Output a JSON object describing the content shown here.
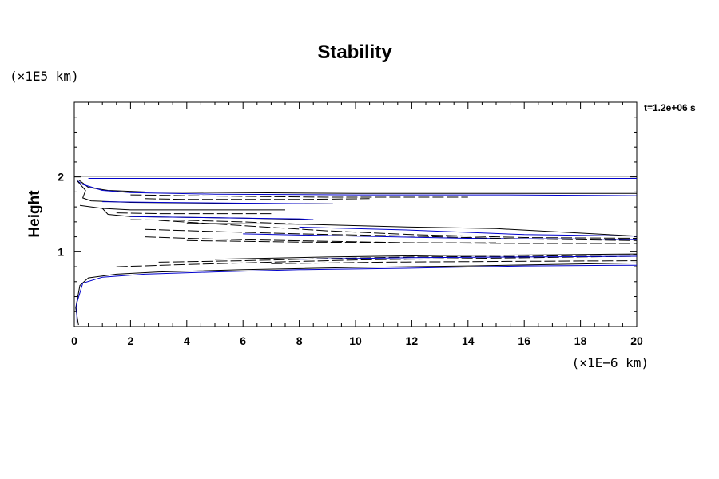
{
  "chart_data": {
    "type": "line",
    "title": "Stability",
    "ylabel": "Height",
    "y_scale_note": "(×1E5 km)",
    "x_scale_note": "(×1E−6 km)",
    "time_label": "t=1.2e+06 s",
    "xlim": [
      0,
      20
    ],
    "ylim": [
      0,
      3
    ],
    "x_ticks": [
      0,
      2,
      4,
      6,
      8,
      10,
      12,
      14,
      16,
      18,
      20
    ],
    "y_ticks": [
      1,
      2
    ],
    "grid": false,
    "legend": "none",
    "colors": {
      "black": "#000000",
      "blue": "#0000cc"
    },
    "series": [
      {
        "color": "#000000",
        "dash": "solid",
        "points": [
          [
            0,
            2.01
          ],
          [
            3,
            2.01
          ],
          [
            9,
            2.01
          ],
          [
            15,
            2.01
          ],
          [
            20,
            2.01
          ]
        ]
      },
      {
        "color": "#0000cc",
        "dash": "solid",
        "points": [
          [
            0.5,
            1.98
          ],
          [
            5,
            1.98
          ],
          [
            9.5,
            1.98
          ],
          [
            15.5,
            1.98
          ],
          [
            20,
            1.98
          ]
        ]
      },
      {
        "color": "#000000",
        "dash": "solid",
        "points": [
          [
            0.15,
            1.96
          ],
          [
            0.3,
            1.92
          ],
          [
            0.5,
            1.86
          ],
          [
            1.2,
            1.82
          ],
          [
            2.5,
            1.8
          ],
          [
            6,
            1.79
          ],
          [
            10,
            1.78
          ],
          [
            15,
            1.78
          ],
          [
            20,
            1.78
          ]
        ]
      },
      {
        "color": "#0000cc",
        "dash": "solid",
        "points": [
          [
            0.1,
            1.95
          ],
          [
            0.3,
            1.9
          ],
          [
            1,
            1.82
          ],
          [
            2,
            1.79
          ],
          [
            5,
            1.77
          ],
          [
            10,
            1.76
          ],
          [
            15,
            1.76
          ],
          [
            20,
            1.75
          ]
        ]
      },
      {
        "color": "#000000",
        "dash": "dashed",
        "points": [
          [
            2,
            1.76
          ],
          [
            4,
            1.75
          ],
          [
            6,
            1.74
          ],
          [
            9,
            1.73
          ],
          [
            12,
            1.73
          ],
          [
            14,
            1.73
          ]
        ]
      },
      {
        "color": "#000000",
        "dash": "dashed",
        "points": [
          [
            2.5,
            1.71
          ],
          [
            4,
            1.7
          ],
          [
            6,
            1.7
          ],
          [
            8,
            1.7
          ],
          [
            10.5,
            1.71
          ]
        ]
      },
      {
        "color": "#000000",
        "dash": "solid",
        "points": [
          [
            0.1,
            1.95
          ],
          [
            0.4,
            1.82
          ],
          [
            0.3,
            1.72
          ],
          [
            0.6,
            1.68
          ],
          [
            2,
            1.66
          ],
          [
            5,
            1.65
          ],
          [
            9.2,
            1.64
          ]
        ]
      },
      {
        "color": "#0000cc",
        "dash": "solid",
        "points": [
          [
            1,
            1.67
          ],
          [
            3,
            1.66
          ],
          [
            6,
            1.65
          ],
          [
            9.2,
            1.64
          ]
        ]
      },
      {
        "color": "#000000",
        "dash": "solid",
        "points": [
          [
            0.2,
            1.62
          ],
          [
            1,
            1.58
          ],
          [
            2,
            1.56
          ],
          [
            4,
            1.56
          ],
          [
            6,
            1.56
          ],
          [
            7.5,
            1.56
          ]
        ]
      },
      {
        "color": "#000000",
        "dash": "solid",
        "points": [
          [
            1,
            1.58
          ],
          [
            1.2,
            1.5
          ],
          [
            2,
            1.47
          ],
          [
            4,
            1.46
          ],
          [
            6,
            1.45
          ],
          [
            8.5,
            1.43
          ]
        ]
      },
      {
        "color": "#0000cc",
        "dash": "solid",
        "points": [
          [
            2,
            1.47
          ],
          [
            4,
            1.46
          ],
          [
            6,
            1.45
          ],
          [
            8,
            1.44
          ],
          [
            8.5,
            1.43
          ]
        ]
      },
      {
        "color": "#000000",
        "dash": "dashed",
        "points": [
          [
            1.5,
            1.52
          ],
          [
            3,
            1.51
          ],
          [
            5,
            1.51
          ],
          [
            7,
            1.51
          ]
        ]
      },
      {
        "color": "#000000",
        "dash": "dashed",
        "points": [
          [
            2,
            1.43
          ],
          [
            4,
            1.42
          ],
          [
            6,
            1.4
          ],
          [
            8,
            1.37
          ]
        ]
      },
      {
        "color": "#000000",
        "dash": "solid",
        "points": [
          [
            4,
            1.38
          ],
          [
            8,
            1.37
          ],
          [
            12,
            1.33
          ],
          [
            15,
            1.31
          ],
          [
            20,
            1.21
          ]
        ]
      },
      {
        "color": "#0000cc",
        "dash": "solid",
        "points": [
          [
            8,
            1.33
          ],
          [
            12,
            1.29
          ],
          [
            16,
            1.23
          ],
          [
            20,
            1.21
          ]
        ]
      },
      {
        "color": "#0000cc",
        "dash": "solid",
        "points": [
          [
            6,
            1.24
          ],
          [
            10,
            1.21
          ],
          [
            14,
            1.18
          ],
          [
            18,
            1.17
          ],
          [
            20,
            1.16
          ]
        ]
      },
      {
        "color": "#000000",
        "dash": "dashed",
        "points": [
          [
            3,
            1.42
          ],
          [
            6,
            1.35
          ],
          [
            9,
            1.28
          ],
          [
            12,
            1.23
          ],
          [
            16,
            1.19
          ],
          [
            20,
            1.18
          ]
        ]
      },
      {
        "color": "#000000",
        "dash": "dashed",
        "points": [
          [
            2.5,
            1.3
          ],
          [
            5,
            1.27
          ],
          [
            8,
            1.24
          ],
          [
            12,
            1.21
          ],
          [
            16,
            1.17
          ],
          [
            20,
            1.15
          ]
        ]
      },
      {
        "color": "#000000",
        "dash": "dashed",
        "points": [
          [
            2.5,
            1.2
          ],
          [
            4,
            1.18
          ],
          [
            6,
            1.16
          ],
          [
            9,
            1.14
          ],
          [
            12,
            1.12
          ],
          [
            16,
            1.11
          ],
          [
            20,
            1.11
          ]
        ]
      },
      {
        "color": "#000000",
        "dash": "dashed",
        "points": [
          [
            4,
            1.15
          ],
          [
            8,
            1.13
          ],
          [
            12,
            1.12
          ],
          [
            15,
            1.12
          ]
        ]
      },
      {
        "color": "#000000",
        "dash": "solid",
        "points": [
          [
            0.15,
            0.02
          ],
          [
            0.05,
            0.25
          ],
          [
            0.2,
            0.55
          ],
          [
            0.5,
            0.65
          ],
          [
            1.5,
            0.7
          ],
          [
            3,
            0.73
          ],
          [
            6,
            0.76
          ],
          [
            10,
            0.79
          ],
          [
            14,
            0.81
          ],
          [
            17,
            0.83
          ],
          [
            20,
            0.85
          ]
        ]
      },
      {
        "color": "#0000cc",
        "dash": "solid",
        "points": [
          [
            0.1,
            0.02
          ],
          [
            0.08,
            0.3
          ],
          [
            0.3,
            0.58
          ],
          [
            1,
            0.66
          ],
          [
            2.5,
            0.7
          ],
          [
            5,
            0.73
          ],
          [
            8,
            0.76
          ],
          [
            12,
            0.78
          ],
          [
            16,
            0.81
          ],
          [
            20,
            0.82
          ]
        ]
      },
      {
        "color": "#000000",
        "dash": "dashed",
        "points": [
          [
            1.5,
            0.8
          ],
          [
            4,
            0.83
          ],
          [
            7,
            0.86
          ],
          [
            10,
            0.89
          ],
          [
            14,
            0.91
          ],
          [
            18,
            0.93
          ],
          [
            20,
            0.94
          ]
        ]
      },
      {
        "color": "#000000",
        "dash": "dashed",
        "points": [
          [
            3,
            0.86
          ],
          [
            6,
            0.88
          ],
          [
            9,
            0.91
          ],
          [
            12,
            0.93
          ],
          [
            16,
            0.94
          ],
          [
            20,
            0.96
          ]
        ]
      },
      {
        "color": "#000000",
        "dash": "solid",
        "points": [
          [
            5,
            0.9
          ],
          [
            9,
            0.93
          ],
          [
            13,
            0.95
          ],
          [
            17,
            0.96
          ],
          [
            20,
            0.97
          ]
        ]
      },
      {
        "color": "#0000cc",
        "dash": "solid",
        "points": [
          [
            8,
            0.9
          ],
          [
            12,
            0.92
          ],
          [
            16,
            0.93
          ],
          [
            20,
            0.94
          ]
        ]
      },
      {
        "color": "#000000",
        "dash": "dashed",
        "points": [
          [
            7,
            0.84
          ],
          [
            11,
            0.86
          ],
          [
            15,
            0.87
          ],
          [
            20,
            0.88
          ]
        ]
      }
    ]
  }
}
